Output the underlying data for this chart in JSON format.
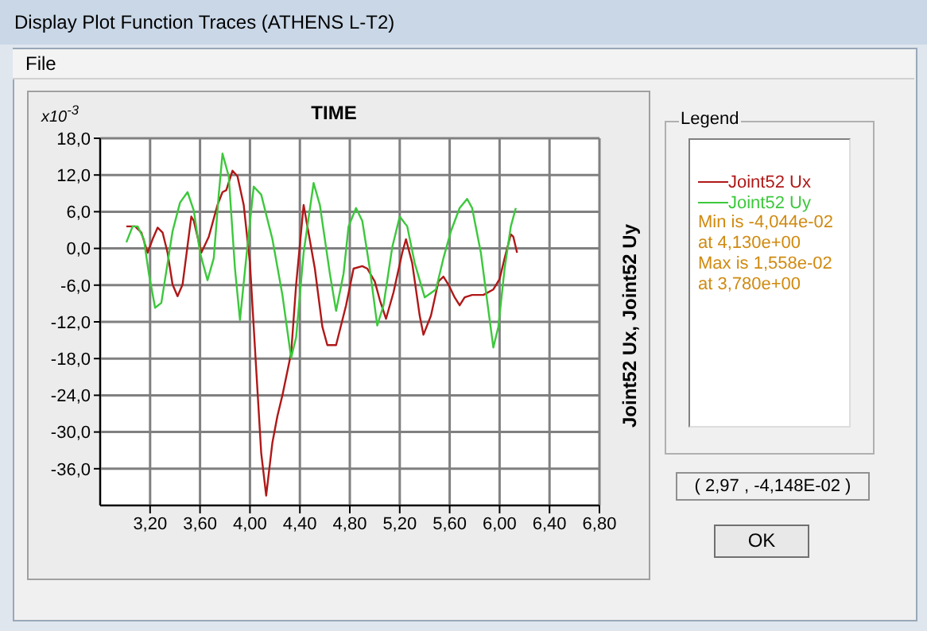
{
  "chart_data": {
    "type": "line",
    "title": "TIME",
    "ylabel": "Joint52 Ux, Joint52 Uy",
    "legend_title": "Legend",
    "annotations": [
      "Display Plot Function Traces  (ATHENS L-T2)",
      "File",
      "x10$^{-3}$",
      "Min is -4,044e-02",
      "at 4,130e+00",
      "Max is 1,558e-02",
      "at 3,780e+00",
      "( 2,97 , -4,148E-02 )",
      "OK"
    ],
    "xlim": [
      2.8,
      6.8
    ],
    "xticks": [
      {
        "value": 3.2,
        "label": "3,20"
      },
      {
        "value": 3.6,
        "label": "3,60"
      },
      {
        "value": 4.0,
        "label": "4,00"
      },
      {
        "value": 4.4,
        "label": "4,40"
      },
      {
        "value": 4.8,
        "label": "4,80"
      },
      {
        "value": 5.2,
        "label": "5,20"
      },
      {
        "value": 5.6,
        "label": "5,60"
      },
      {
        "value": 6.0,
        "label": "6,00"
      },
      {
        "value": 6.4,
        "label": "6,40"
      },
      {
        "value": 6.8,
        "label": "6,80"
      }
    ],
    "ylim": [
      -42,
      18
    ],
    "yticks": [
      {
        "value": 18,
        "label": "18,0"
      },
      {
        "value": 12,
        "label": "12,0"
      },
      {
        "value": 6,
        "label": "6,0"
      },
      {
        "value": 0,
        "label": "0,0"
      },
      {
        "value": -6,
        "label": "-6,0"
      },
      {
        "value": -12,
        "label": "-12,0"
      },
      {
        "value": -18,
        "label": "-18,0"
      },
      {
        "value": -24,
        "label": "-24,0"
      },
      {
        "value": -30,
        "label": "-30,0"
      },
      {
        "value": -36,
        "label": "-36,0"
      }
    ],
    "grid": true,
    "legend": "right",
    "marker": "none",
    "line_style": "solid",
    "series": [
      {
        "name": "Joint52 Ux",
        "color": "#b01818",
        "x": [
          3.01,
          3.08,
          3.13,
          3.18,
          3.22,
          3.26,
          3.3,
          3.34,
          3.38,
          3.42,
          3.46,
          3.53,
          3.55,
          3.61,
          3.67,
          3.74,
          3.78,
          3.81,
          3.86,
          3.9,
          3.95,
          4.0,
          4.05,
          4.09,
          4.13,
          4.18,
          4.22,
          4.26,
          4.33,
          4.37,
          4.43,
          4.52,
          4.58,
          4.62,
          4.69,
          4.77,
          4.83,
          4.9,
          4.94,
          5.0,
          5.04,
          5.09,
          5.15,
          5.22,
          5.25,
          5.3,
          5.36,
          5.39,
          5.45,
          5.51,
          5.55,
          5.59,
          5.64,
          5.68,
          5.72,
          5.78,
          5.87,
          5.95,
          6.0,
          6.04,
          6.09,
          6.11,
          6.14
        ],
        "values": [
          3.6,
          3.6,
          2.6,
          -0.7,
          1.5,
          3.4,
          2.6,
          -0.7,
          -5.9,
          -7.8,
          -5.9,
          5.2,
          4.5,
          -0.7,
          1.9,
          7.1,
          9.2,
          9.5,
          12.7,
          11.8,
          7.1,
          -2.4,
          -19.7,
          -33.4,
          -40.4,
          -31.7,
          -27.4,
          -24.0,
          -17.1,
          -5.9,
          7.1,
          -3.3,
          -12.8,
          -15.8,
          -15.8,
          -9.3,
          -3.3,
          -2.9,
          -3.3,
          -5.4,
          -8.4,
          -11.5,
          -7.2,
          -0.7,
          1.5,
          -2.4,
          -11.0,
          -14.1,
          -11.0,
          -5.4,
          -4.6,
          -5.9,
          -8.0,
          -9.3,
          -8.0,
          -7.6,
          -7.6,
          -6.7,
          -5.0,
          -1.6,
          2.3,
          1.9,
          -0.7
        ]
      },
      {
        "name": "Joint52 Uy",
        "color": "#3cc83c",
        "x": [
          3.01,
          3.06,
          3.1,
          3.15,
          3.19,
          3.24,
          3.29,
          3.34,
          3.38,
          3.44,
          3.5,
          3.55,
          3.6,
          3.66,
          3.71,
          3.75,
          3.78,
          3.83,
          3.88,
          3.92,
          3.97,
          4.03,
          4.09,
          4.18,
          4.26,
          4.33,
          4.37,
          4.43,
          4.51,
          4.56,
          4.64,
          4.69,
          4.75,
          4.79,
          4.85,
          4.9,
          4.96,
          5.02,
          5.07,
          5.14,
          5.2,
          5.26,
          5.32,
          5.4,
          5.49,
          5.55,
          5.61,
          5.68,
          5.74,
          5.78,
          5.85,
          5.9,
          5.95,
          5.99,
          6.04,
          6.09,
          6.13
        ],
        "values": [
          1.0,
          3.6,
          3.6,
          1.5,
          -4.1,
          -9.7,
          -8.9,
          -2.4,
          2.8,
          7.5,
          9.2,
          6.2,
          -0.7,
          -5.2,
          -1.6,
          8.8,
          15.5,
          11.8,
          -3.3,
          -11.7,
          -1.6,
          10.1,
          8.8,
          1.5,
          -7.6,
          -17.9,
          -14.5,
          -0.7,
          10.7,
          7.1,
          -4.1,
          -10.2,
          -4.1,
          3.6,
          6.6,
          4.5,
          -3.3,
          -12.6,
          -9.3,
          0.2,
          5.2,
          3.6,
          -2.4,
          -8.0,
          -6.7,
          -1.6,
          2.8,
          6.6,
          8.1,
          6.6,
          -0.7,
          -8.5,
          -16.2,
          -12.8,
          -3.3,
          3.6,
          6.6
        ]
      }
    ]
  }
}
